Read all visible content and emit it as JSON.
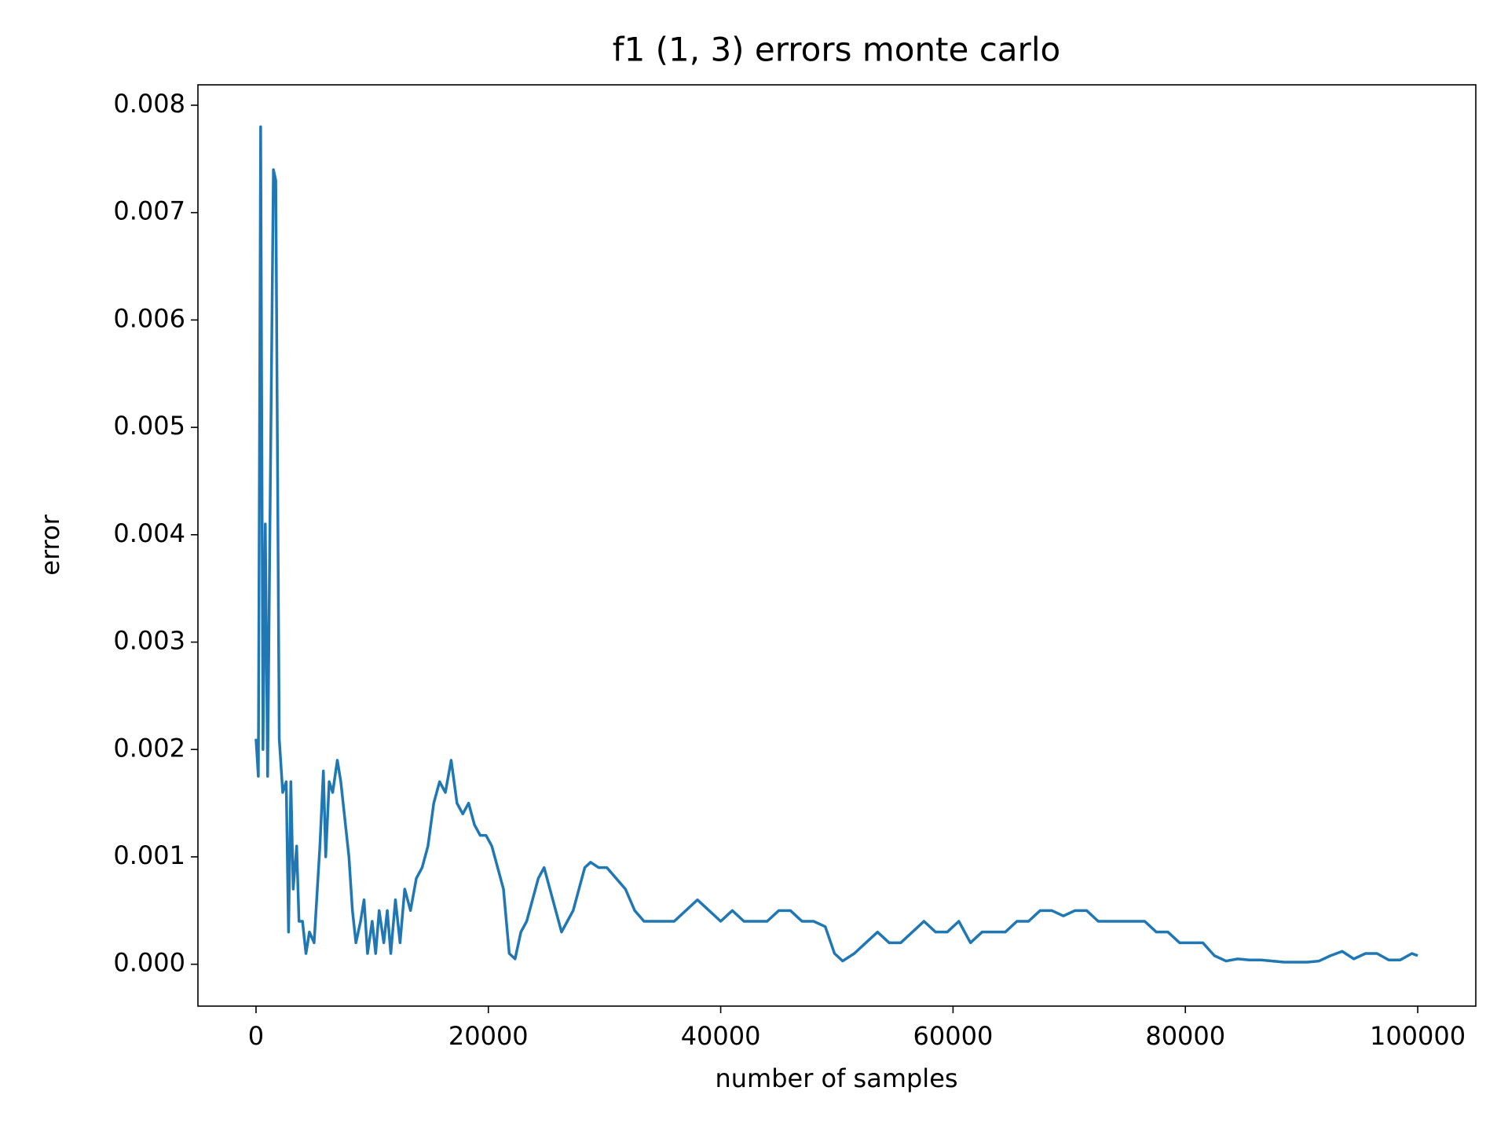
{
  "chart_data": {
    "type": "line",
    "title": "f1 (1, 3) errors monte carlo",
    "xlabel": "number of samples",
    "ylabel": "error",
    "x": [
      0,
      200,
      400,
      600,
      800,
      1000,
      1200,
      1500,
      1700,
      2000,
      2300,
      2600,
      2800,
      3000,
      3200,
      3500,
      3700,
      4000,
      4300,
      4600,
      5000,
      5500,
      5800,
      6000,
      6300,
      6600,
      7000,
      7300,
      7600,
      8000,
      8300,
      8600,
      9000,
      9300,
      9600,
      10000,
      10300,
      10600,
      11000,
      11300,
      11600,
      12000,
      12400,
      12800,
      13300,
      13800,
      14300,
      14800,
      15300,
      15800,
      16300,
      16800,
      17300,
      17800,
      18300,
      18800,
      19300,
      19800,
      20300,
      20800,
      21300,
      21800,
      22300,
      22800,
      23300,
      23800,
      24300,
      24800,
      25300,
      25800,
      26300,
      26800,
      27300,
      27800,
      28300,
      28800,
      29500,
      30200,
      31000,
      31800,
      32600,
      33400,
      34200,
      35000,
      36000,
      37000,
      38000,
      39000,
      40000,
      41000,
      42000,
      43000,
      44000,
      45000,
      46000,
      47000,
      48000,
      49000,
      49800,
      50500,
      51500,
      52500,
      53500,
      54500,
      55500,
      56500,
      57500,
      58500,
      59500,
      60500,
      61500,
      62500,
      63500,
      64500,
      65500,
      66500,
      67500,
      68500,
      69500,
      70500,
      71500,
      72500,
      73500,
      74500,
      75500,
      76500,
      77500,
      78500,
      79500,
      80500,
      81500,
      82500,
      83500,
      84500,
      85500,
      86500,
      87500,
      88500,
      89500,
      90500,
      91500,
      92500,
      93500,
      94500,
      95500,
      96500,
      97500,
      98500,
      99500,
      100000
    ],
    "series": [
      {
        "name": "error",
        "color": "#1f77b4",
        "values": [
          0.0021,
          0.00175,
          0.0078,
          0.002,
          0.0041,
          0.00175,
          0.0041,
          0.0074,
          0.0073,
          0.0021,
          0.0016,
          0.0017,
          0.0003,
          0.0017,
          0.0007,
          0.0011,
          0.0004,
          0.0004,
          0.0001,
          0.0003,
          0.0002,
          0.0011,
          0.0018,
          0.001,
          0.0017,
          0.0016,
          0.0019,
          0.0017,
          0.0014,
          0.001,
          0.0005,
          0.0002,
          0.0004,
          0.0006,
          0.0001,
          0.0004,
          0.0001,
          0.0005,
          0.0002,
          0.0005,
          0.0001,
          0.0006,
          0.0002,
          0.0007,
          0.0005,
          0.0008,
          0.0009,
          0.0011,
          0.0015,
          0.0017,
          0.0016,
          0.0019,
          0.0015,
          0.0014,
          0.0015,
          0.0013,
          0.0012,
          0.0012,
          0.0011,
          0.0009,
          0.0007,
          0.0001,
          5e-05,
          0.0003,
          0.0004,
          0.0006,
          0.0008,
          0.0009,
          0.0007,
          0.0005,
          0.0003,
          0.0004,
          0.0005,
          0.0007,
          0.0009,
          0.00095,
          0.0009,
          0.0009,
          0.0008,
          0.0007,
          0.0005,
          0.0004,
          0.0004,
          0.0004,
          0.0004,
          0.0005,
          0.0006,
          0.0005,
          0.0004,
          0.0005,
          0.0004,
          0.0004,
          0.0004,
          0.0005,
          0.0005,
          0.0004,
          0.0004,
          0.00035,
          0.0001,
          3e-05,
          0.0001,
          0.0002,
          0.0003,
          0.0002,
          0.0002,
          0.0003,
          0.0004,
          0.0003,
          0.0003,
          0.0004,
          0.0002,
          0.0003,
          0.0003,
          0.0003,
          0.0004,
          0.0004,
          0.0005,
          0.0005,
          0.00045,
          0.0005,
          0.0005,
          0.0004,
          0.0004,
          0.0004,
          0.0004,
          0.0004,
          0.0003,
          0.0003,
          0.0002,
          0.0002,
          0.0002,
          8e-05,
          3e-05,
          5e-05,
          4e-05,
          4e-05,
          3e-05,
          2e-05,
          2e-05,
          2e-05,
          3e-05,
          8e-05,
          0.00012,
          5e-05,
          0.0001,
          0.0001,
          4e-05,
          4e-05,
          0.0001,
          8e-05
        ]
      }
    ],
    "xlim": [
      -5000,
      105000
    ],
    "xticks": [
      0,
      20000,
      40000,
      60000,
      80000,
      100000
    ],
    "ylim": [
      -0.00039,
      0.00819
    ],
    "yticks": [
      {
        "value": 0,
        "label": "0.000"
      },
      {
        "value": 0.001,
        "label": "0.001"
      },
      {
        "value": 0.002,
        "label": "0.002"
      },
      {
        "value": 0.003,
        "label": "0.003"
      },
      {
        "value": 0.004,
        "label": "0.004"
      },
      {
        "value": 0.005,
        "label": "0.005"
      },
      {
        "value": 0.006,
        "label": "0.006"
      },
      {
        "value": 0.007,
        "label": "0.007"
      },
      {
        "value": 0.008,
        "label": "0.008"
      }
    ],
    "grid": false
  }
}
